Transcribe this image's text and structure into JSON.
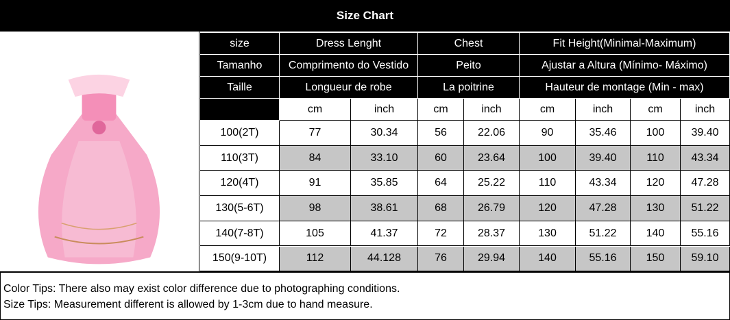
{
  "header": {
    "title": "Size Chart"
  },
  "table": {
    "header_rows": [
      [
        "size",
        "Dress Lenght",
        "Chest",
        "Fit Height(Minimal-Maximum)"
      ],
      [
        "Tamanho",
        "Comprimento do Vestido",
        "Peito",
        "Ajustar a Altura (Mínimo- Máximo)"
      ],
      [
        "Taille",
        "Longueur de robe",
        "La poitrine",
        "Hauteur de montage (Min - max)"
      ]
    ],
    "unit_row": [
      "cm",
      "inch",
      "cm",
      "inch",
      "cm",
      "inch",
      "cm",
      "inch"
    ],
    "rows": [
      [
        "100(2T)",
        "77",
        "30.34",
        "56",
        "22.06",
        "90",
        "35.46",
        "100",
        "39.40"
      ],
      [
        "110(3T)",
        "84",
        "33.10",
        "60",
        "23.64",
        "100",
        "39.40",
        "110",
        "43.34"
      ],
      [
        "120(4T)",
        "91",
        "35.85",
        "64",
        "25.22",
        "110",
        "43.34",
        "120",
        "47.28"
      ],
      [
        "130(5-6T)",
        "98",
        "38.61",
        "68",
        "26.79",
        "120",
        "47.28",
        "130",
        "51.22"
      ],
      [
        "140(7-8T)",
        "105",
        "41.37",
        "72",
        "28.37",
        "130",
        "51.22",
        "140",
        "55.16"
      ],
      [
        "150(9-10T)",
        "112",
        "44.128",
        "76",
        "29.94",
        "140",
        "55.16",
        "150",
        "59.10"
      ]
    ]
  },
  "notes": [
    "Color Tips: There also may exist color difference due to photographing conditions.",
    "Size Tips: Measurement different is allowed by 1-3cm due to hand measure."
  ]
}
